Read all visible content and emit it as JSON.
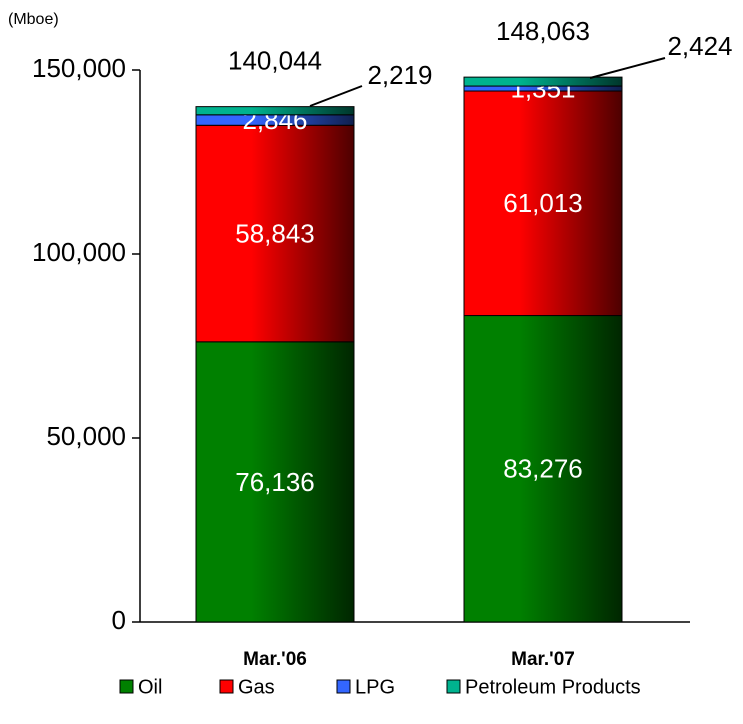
{
  "chart_data": {
    "type": "stacked_bar",
    "y_axis_label": "(Mboe)",
    "categories": [
      "Mar.'06",
      "Mar.'07"
    ],
    "series": [
      {
        "name": "Oil",
        "color": "#008000",
        "values": [
          76136,
          83276
        ],
        "value_labels": [
          "76,136",
          "83,276"
        ]
      },
      {
        "name": "Gas",
        "color": "#ff0000",
        "values": [
          58843,
          61013
        ],
        "value_labels": [
          "58,843",
          "61,013"
        ]
      },
      {
        "name": "LPG",
        "color": "#3366ff",
        "values": [
          2846,
          1351
        ],
        "value_labels": [
          "2,846",
          "1,351"
        ]
      },
      {
        "name": "Petroleum Products",
        "color": "#00b38f",
        "values": [
          2219,
          2424
        ],
        "value_labels": [
          "2,219",
          "2,424"
        ]
      }
    ],
    "totals": [
      140044,
      148063
    ],
    "total_labels": [
      "140,044",
      "148,063"
    ],
    "ylim": [
      0,
      150000
    ],
    "yticks": [
      0,
      {
        "value": 50000,
        "label": "50,000"
      },
      {
        "value": 100000,
        "label": "100,000"
      },
      {
        "value": 150000,
        "label": "150,000"
      }
    ],
    "legend": "bottom"
  }
}
